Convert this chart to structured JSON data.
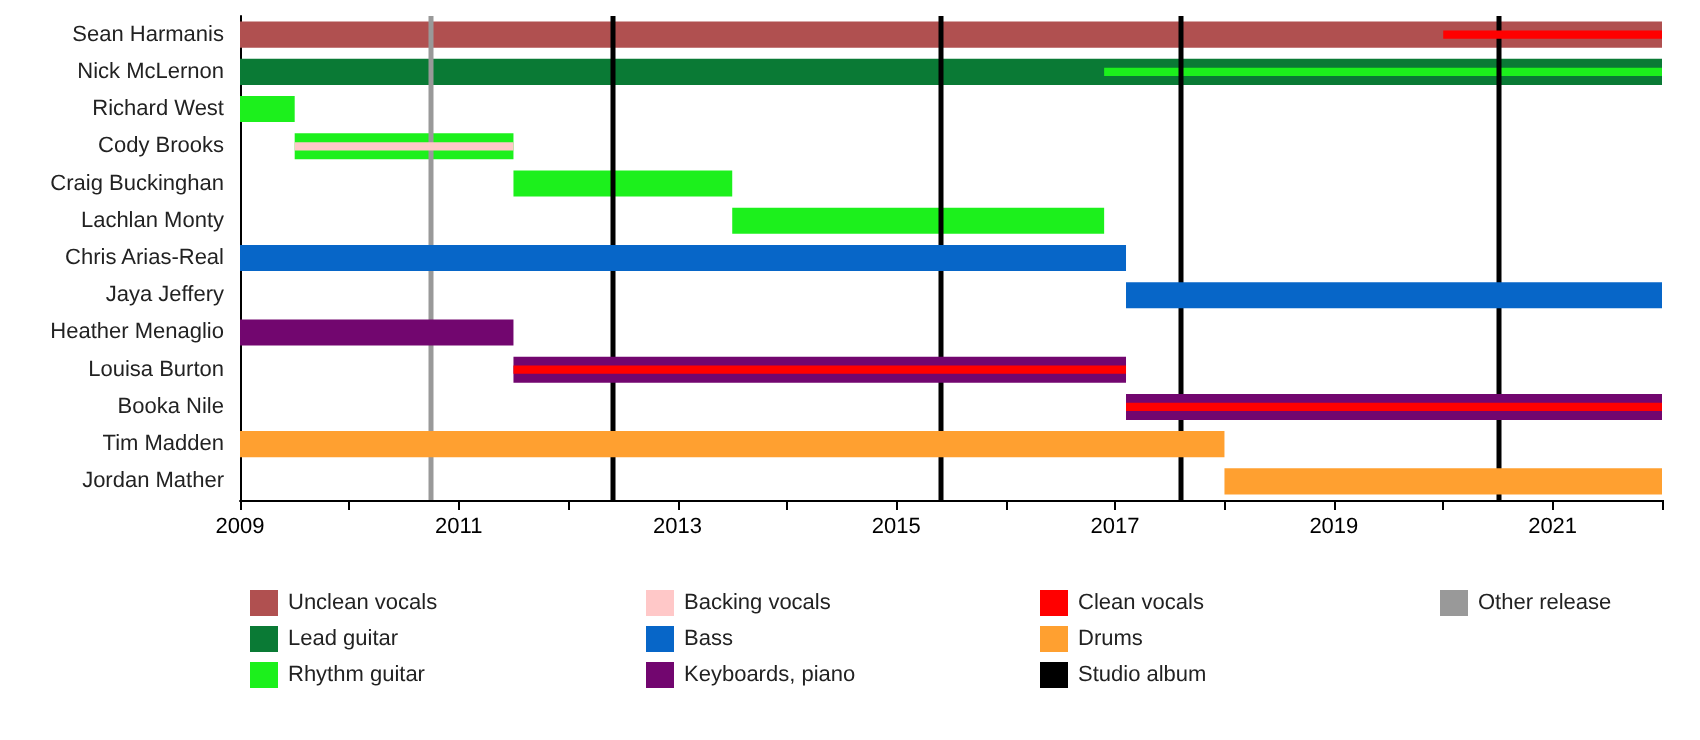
{
  "chart_data": {
    "type": "bar",
    "orientation": "horizontal",
    "legend": "bottom",
    "categories": [
      "Sean Harmanis",
      "Nick McLernon",
      "Richard West",
      "Cody Brooks",
      "Craig Buckinghan",
      "Lachlan Monty",
      "Chris Arias-Real",
      "Jaya Jeffery",
      "Heather Menaglio",
      "Louisa Burton",
      "Booka Nile",
      "Tim Madden",
      "Jordan Mather"
    ],
    "xlim": [
      2009,
      2022
    ],
    "xticks": [
      2009,
      {
        "value": 2010,
        "label": null
      },
      2011,
      {
        "value": 2012,
        "label": null
      },
      2013,
      {
        "value": 2014,
        "label": null
      },
      2015,
      {
        "value": 2016,
        "label": null
      },
      2017,
      {
        "value": 2018,
        "label": null
      },
      2019,
      {
        "value": 2020,
        "label": null
      },
      2021,
      {
        "value": 2022,
        "label": null
      }
    ],
    "series": [
      {
        "name": "Unclean vocals",
        "color": "#b05050",
        "base": [
          2009,
          null,
          null,
          null,
          null,
          null,
          null,
          null,
          null,
          null,
          null,
          null,
          null
        ],
        "values": [
          13,
          null,
          null,
          null,
          null,
          null,
          null,
          null,
          null,
          null,
          null,
          null,
          null
        ]
      },
      {
        "name": "Lead guitar",
        "color": "#0a7a35",
        "base": [
          null,
          2009,
          null,
          null,
          null,
          null,
          null,
          null,
          null,
          null,
          null,
          null,
          null
        ],
        "values": [
          null,
          13,
          null,
          null,
          null,
          null,
          null,
          null,
          null,
          null,
          null,
          null,
          null
        ]
      },
      {
        "name": "Rhythm guitar",
        "color": "#1cf01c",
        "base": [
          null,
          2016.9,
          2009,
          2009.5,
          2011.5,
          2013.5,
          null,
          null,
          null,
          null,
          null,
          null,
          null
        ],
        "values": [
          null,
          5.1,
          0.5,
          2,
          2,
          3.4,
          null,
          null,
          null,
          null,
          null,
          null,
          null
        ]
      },
      {
        "name": "Backing vocals",
        "color": "#ffc8c8",
        "base": [
          null,
          null,
          null,
          2009.5,
          null,
          null,
          null,
          null,
          null,
          null,
          null,
          null,
          null
        ],
        "values": [
          null,
          null,
          null,
          2,
          null,
          null,
          null,
          null,
          null,
          null,
          null,
          null,
          null
        ]
      },
      {
        "name": "Bass",
        "color": "#0766c8",
        "base": [
          null,
          null,
          null,
          null,
          null,
          null,
          2009,
          2017.1,
          null,
          null,
          null,
          null,
          null
        ],
        "values": [
          null,
          null,
          null,
          null,
          null,
          null,
          8.1,
          4.9,
          null,
          null,
          null,
          null,
          null
        ]
      },
      {
        "name": "Keyboards, piano",
        "color": "#72066f",
        "base": [
          null,
          null,
          null,
          null,
          null,
          null,
          null,
          null,
          2009,
          2011.5,
          2017.1,
          null,
          null
        ],
        "values": [
          null,
          null,
          null,
          null,
          null,
          null,
          null,
          null,
          2.5,
          5.6,
          4.9,
          null,
          null
        ]
      },
      {
        "name": "Clean vocals",
        "color": "#ff0000",
        "base": [
          2020,
          null,
          null,
          null,
          null,
          null,
          null,
          null,
          null,
          2011.5,
          2017.1,
          null,
          null
        ],
        "values": [
          2,
          null,
          null,
          null,
          null,
          null,
          null,
          null,
          null,
          5.6,
          4.9,
          null,
          null
        ]
      },
      {
        "name": "Drums",
        "color": "#ffa030",
        "base": [
          null,
          null,
          null,
          null,
          null,
          null,
          null,
          null,
          null,
          null,
          null,
          2009,
          2018
        ],
        "values": [
          null,
          null,
          null,
          null,
          null,
          null,
          null,
          null,
          null,
          null,
          null,
          9,
          4
        ]
      }
    ],
    "ref_lines": [
      {
        "axis": "x",
        "value": 2012.4,
        "label": "Studio album",
        "color": "#000000"
      },
      {
        "axis": "x",
        "value": 2015.4,
        "color": "#000000"
      },
      {
        "axis": "x",
        "value": 2017.6,
        "color": "#000000"
      },
      {
        "axis": "x",
        "value": 2020.5,
        "color": "#000000"
      },
      {
        "axis": "x",
        "value": 2010.75,
        "label": "Other release",
        "color": "#999999"
      }
    ]
  }
}
